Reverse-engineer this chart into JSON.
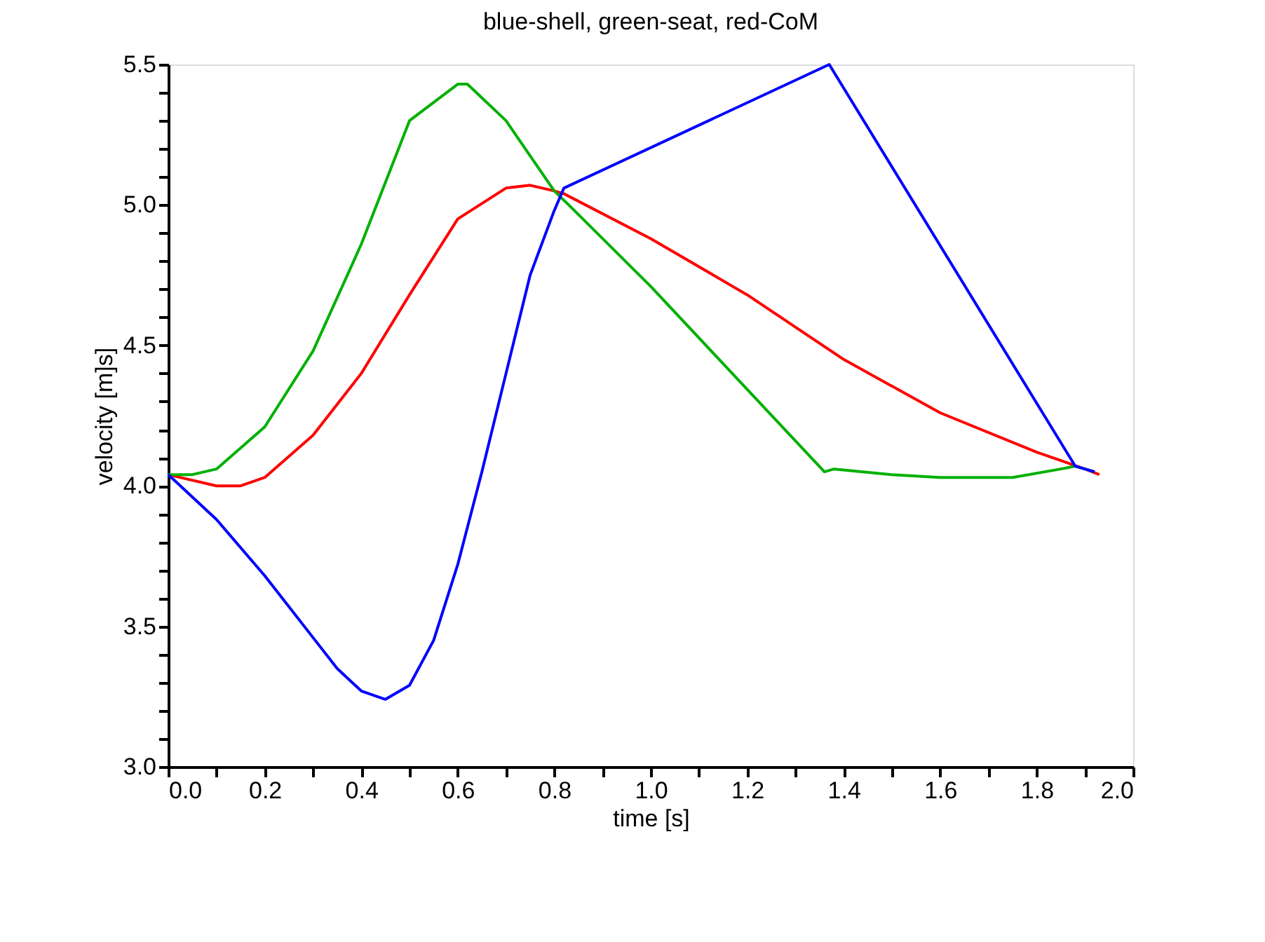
{
  "chart_data": {
    "type": "line",
    "title": "blue-shell, green-seat, red-CoM",
    "xlabel": "time [s]",
    "ylabel": "velocity [m]s]",
    "xlim": [
      0,
      2
    ],
    "ylim": [
      3,
      5.5
    ],
    "xticks": [
      {
        "value": 0,
        "label": "0.0"
      },
      {
        "value": 0.1,
        "label": null
      },
      {
        "value": 0.2,
        "label": "0.2"
      },
      {
        "value": 0.3,
        "label": null
      },
      {
        "value": 0.4,
        "label": "0.4"
      },
      {
        "value": 0.5,
        "label": null
      },
      {
        "value": 0.6,
        "label": "0.6"
      },
      {
        "value": 0.7,
        "label": null
      },
      {
        "value": 0.8,
        "label": "0.8"
      },
      {
        "value": 0.9,
        "label": null
      },
      {
        "value": 1,
        "label": "1.0"
      },
      {
        "value": 1.1,
        "label": null
      },
      {
        "value": 1.2,
        "label": "1.2"
      },
      {
        "value": 1.3,
        "label": null
      },
      {
        "value": 1.4,
        "label": "1.4"
      },
      {
        "value": 1.5,
        "label": null
      },
      {
        "value": 1.6,
        "label": "1.6"
      },
      {
        "value": 1.7,
        "label": null
      },
      {
        "value": 1.8,
        "label": "1.8"
      },
      {
        "value": 1.9,
        "label": null
      },
      {
        "value": 2,
        "label": "2.0"
      }
    ],
    "yticks": [
      {
        "value": 3,
        "label": "3.0"
      },
      {
        "value": 3.1,
        "label": null
      },
      {
        "value": 3.2,
        "label": null
      },
      {
        "value": 3.3,
        "label": null
      },
      {
        "value": 3.4,
        "label": null
      },
      {
        "value": 3.5,
        "label": "3.5"
      },
      {
        "value": 3.6,
        "label": null
      },
      {
        "value": 3.7,
        "label": null
      },
      {
        "value": 3.8,
        "label": null
      },
      {
        "value": 3.9,
        "label": null
      },
      {
        "value": 4,
        "label": "4.0"
      },
      {
        "value": 4.1,
        "label": null
      },
      {
        "value": 4.2,
        "label": null
      },
      {
        "value": 4.3,
        "label": null
      },
      {
        "value": 4.4,
        "label": null
      },
      {
        "value": 4.5,
        "label": "4.5"
      },
      {
        "value": 4.6,
        "label": null
      },
      {
        "value": 4.7,
        "label": null
      },
      {
        "value": 4.8,
        "label": null
      },
      {
        "value": 4.9,
        "label": null
      },
      {
        "value": 5,
        "label": "5.0"
      },
      {
        "value": 5.1,
        "label": null
      },
      {
        "value": 5.2,
        "label": null
      },
      {
        "value": 5.3,
        "label": null
      },
      {
        "value": 5.4,
        "label": null
      },
      {
        "value": 5.5,
        "label": "5.5"
      }
    ],
    "grid": false,
    "legend": false,
    "marker": "none",
    "line_style": "solid",
    "series": [
      {
        "color": "#0000ff",
        "x": [
          0,
          0.1,
          0.2,
          0.3,
          0.35,
          0.4,
          0.45,
          0.5,
          0.55,
          0.6,
          0.65,
          0.7,
          0.75,
          0.8,
          0.82,
          1.37,
          1.88,
          1.92
        ],
        "values": [
          4.04,
          3.88,
          3.68,
          3.46,
          3.35,
          3.27,
          3.24,
          3.29,
          3.45,
          3.72,
          4.05,
          4.4,
          4.75,
          4.98,
          5.06,
          5.5,
          4.07,
          4.05
        ]
      },
      {
        "color": "#00b000",
        "x": [
          0,
          0.05,
          0.1,
          0.2,
          0.3,
          0.4,
          0.5,
          0.6,
          0.62,
          0.7,
          0.8,
          0.83,
          1.0,
          1.36,
          1.38,
          1.5,
          1.6,
          1.75,
          1.85,
          1.88,
          1.92
        ],
        "values": [
          4.04,
          4.04,
          4.06,
          4.21,
          4.48,
          4.86,
          5.3,
          5.43,
          5.43,
          5.3,
          5.05,
          5.0,
          4.71,
          4.05,
          4.06,
          4.04,
          4.03,
          4.03,
          4.06,
          4.07,
          4.05
        ]
      },
      {
        "color": "#ff0000",
        "x": [
          0,
          0.1,
          0.15,
          0.2,
          0.3,
          0.4,
          0.5,
          0.6,
          0.7,
          0.75,
          0.8,
          0.82,
          1.0,
          1.2,
          1.4,
          1.6,
          1.8,
          1.9,
          1.93
        ],
        "values": [
          4.04,
          4.0,
          4.0,
          4.03,
          4.18,
          4.4,
          4.68,
          4.95,
          5.06,
          5.07,
          5.05,
          5.04,
          4.88,
          4.68,
          4.45,
          4.26,
          4.12,
          4.06,
          4.04
        ]
      }
    ]
  }
}
